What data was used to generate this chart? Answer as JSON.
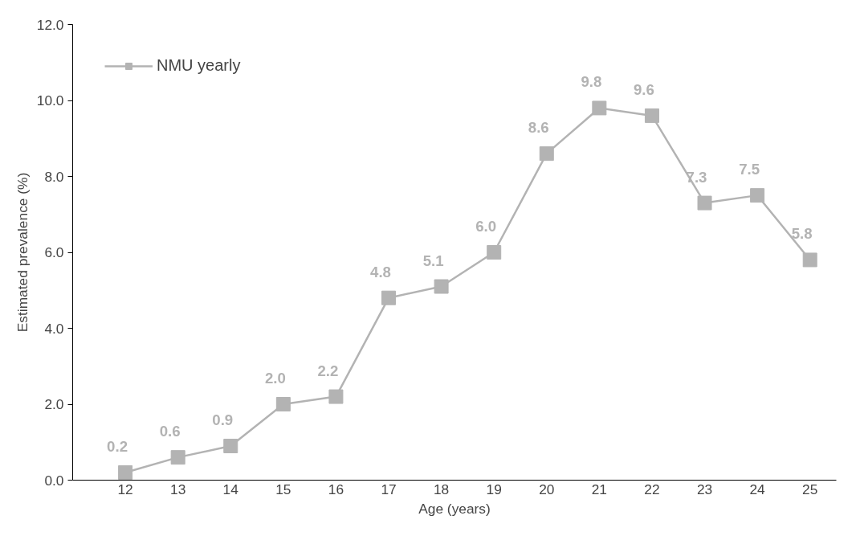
{
  "chart_data": {
    "type": "line",
    "xlabel": "Age (years)",
    "ylabel": "Estimated prevalence (%)",
    "categories": [
      "12",
      "13",
      "14",
      "15",
      "16",
      "17",
      "18",
      "19",
      "20",
      "21",
      "22",
      "23",
      "24",
      "25"
    ],
    "series": [
      {
        "name": "NMU yearly",
        "color": "#b3b3b3",
        "values": [
          0.2,
          0.6,
          0.9,
          2.0,
          2.2,
          4.8,
          5.1,
          6.0,
          8.6,
          9.8,
          9.6,
          7.3,
          7.5,
          5.8
        ],
        "value_labels": [
          "0.2",
          "0.6",
          "0.9",
          "2.0",
          "2.2",
          "4.8",
          "5.1",
          "6.0",
          "8.6",
          "9.8",
          "9.6",
          "7.3",
          "7.5",
          "5.8"
        ]
      }
    ],
    "ylim": [
      0,
      12
    ],
    "yticks": [
      {
        "value": 0,
        "label": "0.0"
      },
      {
        "value": 2,
        "label": "2.0"
      },
      {
        "value": 4,
        "label": "4.0"
      },
      {
        "value": 6,
        "label": "6.0"
      },
      {
        "value": 8,
        "label": "8.0"
      },
      {
        "value": 10,
        "label": "10.0"
      },
      {
        "value": 12,
        "label": "12.0"
      }
    ],
    "marker": "square",
    "line_style": "solid",
    "grid": false,
    "legend": "top left"
  }
}
